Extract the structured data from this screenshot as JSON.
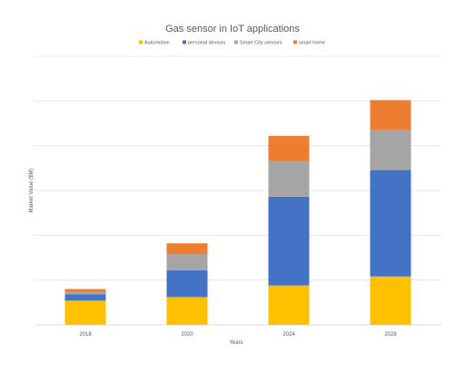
{
  "chart_data": {
    "type": "bar",
    "stacked": true,
    "title": "Gas sensor in IoT applications",
    "xlabel": "Years",
    "ylabel": "Market Value ($M)",
    "categories": [
      "2018",
      "2020",
      "2024",
      "2028"
    ],
    "series": [
      {
        "name": "Automotive",
        "color": "#ffc000",
        "values": [
          27,
          31,
          44,
          54
        ]
      },
      {
        "name": "personal devices",
        "color": "#4472c4",
        "values": [
          7,
          30,
          99,
          119
        ]
      },
      {
        "name": "Smart City sensors",
        "color": "#a5a5a5",
        "values": [
          3,
          18,
          40,
          45
        ]
      },
      {
        "name": "smart home",
        "color": "#ed7d31",
        "values": [
          3,
          12,
          28,
          33
        ]
      }
    ],
    "ylim": [
      0,
      300
    ],
    "y_gridline_step": 50,
    "y_tick_labels_shown": false,
    "grid": true,
    "legend_position": "top"
  }
}
